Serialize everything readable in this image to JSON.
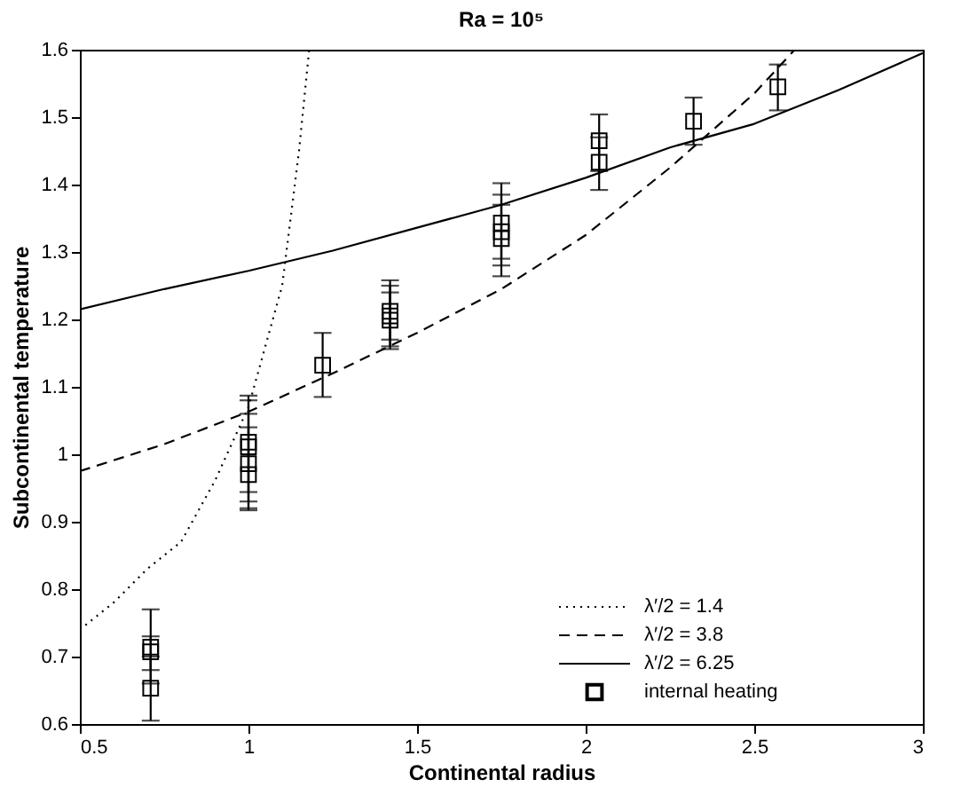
{
  "chart_data": {
    "type": "line",
    "title": "Ra = 10⁵",
    "xlabel": "Continental radius",
    "ylabel": "Subcontinental temperature",
    "xlim": [
      0.5,
      3
    ],
    "ylim": [
      0.6,
      1.6
    ],
    "xticks": [
      0.5,
      1,
      1.5,
      2,
      2.5,
      3
    ],
    "yticks": [
      0.6,
      0.7,
      0.8,
      0.9,
      1,
      1.1,
      1.2,
      1.3,
      1.4,
      1.5,
      1.6
    ],
    "grid": false,
    "legend": "bottom right",
    "series": [
      {
        "name": "λ′/2 = 1.4",
        "line_style": "dotted",
        "color": "#000000",
        "x": [
          0.5,
          0.6,
          0.7,
          0.8,
          0.9,
          1.0,
          1.1,
          1.15,
          1.18
        ],
        "values": [
          0.74,
          0.78,
          0.83,
          0.87,
          0.96,
          1.07,
          1.25,
          1.45,
          1.6
        ]
      },
      {
        "name": "λ′/2 = 3.8",
        "line_style": "dashed",
        "color": "#000000",
        "x": [
          0.5,
          0.75,
          1.0,
          1.25,
          1.5,
          1.75,
          2.0,
          2.25,
          2.5,
          2.62
        ],
        "values": [
          0.975,
          1.015,
          1.063,
          1.12,
          1.18,
          1.245,
          1.325,
          1.425,
          1.535,
          1.6
        ]
      },
      {
        "name": "λ′/2 = 6.25",
        "line_style": "solid",
        "color": "#000000",
        "x": [
          0.5,
          0.75,
          1.0,
          1.25,
          1.5,
          1.75,
          2.0,
          2.25,
          2.5,
          2.75,
          3.0
        ],
        "values": [
          1.215,
          1.245,
          1.272,
          1.302,
          1.336,
          1.37,
          1.41,
          1.455,
          1.49,
          1.54,
          1.595
        ]
      },
      {
        "name": "internal heating",
        "type": "scatter",
        "marker": "square",
        "color": "#000000",
        "x": [
          0.71,
          0.71,
          0.71,
          1.0,
          1.0,
          1.0,
          1.0,
          1.22,
          1.42,
          1.42,
          1.42,
          1.75,
          1.75,
          1.75,
          2.04,
          2.04,
          2.32,
          2.57
        ],
        "values": [
          0.714,
          0.707,
          0.653,
          1.018,
          1.011,
          0.986,
          0.97,
          1.132,
          1.212,
          1.205,
          1.199,
          1.343,
          1.33,
          1.32,
          1.465,
          1.433,
          1.494,
          1.545
        ],
        "errors": [
          [
            0.66,
            0.77
          ],
          [
            0.68,
            0.73
          ],
          [
            0.605,
            0.7
          ],
          [
            0.944,
            1.087
          ],
          [
            0.93,
            1.08
          ],
          [
            0.917,
            1.06
          ],
          [
            0.92,
            1.04
          ],
          [
            1.085,
            1.18
          ],
          [
            1.17,
            1.258
          ],
          [
            1.16,
            1.25
          ],
          [
            1.156,
            1.24
          ],
          [
            1.29,
            1.385
          ],
          [
            1.264,
            1.402
          ],
          [
            1.28,
            1.37
          ],
          [
            1.42,
            1.504
          ],
          [
            1.392,
            1.47
          ],
          [
            1.459,
            1.529
          ],
          [
            1.51,
            1.578
          ]
        ]
      }
    ]
  }
}
